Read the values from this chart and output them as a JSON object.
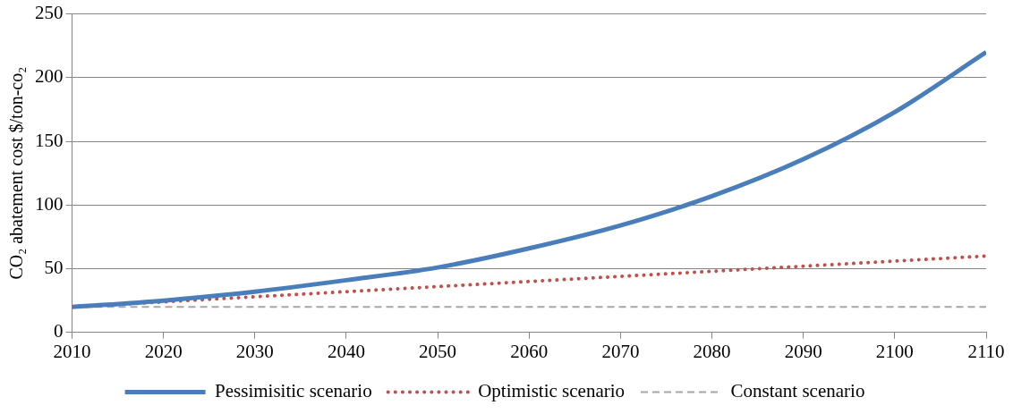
{
  "chart_data": {
    "type": "line",
    "ylabel": "CO₂ abatement cost $/ton-co₂",
    "x": [
      2010,
      2020,
      2030,
      2040,
      2050,
      2060,
      2070,
      2080,
      2090,
      2100,
      2110
    ],
    "xlim": [
      2010,
      2110
    ],
    "xticks": [
      2010,
      2020,
      2030,
      2040,
      2050,
      2060,
      2070,
      2080,
      2090,
      2100,
      2110
    ],
    "ylim": [
      0,
      250
    ],
    "yticks": [
      0,
      50,
      100,
      150,
      200,
      250
    ],
    "grid": "y",
    "legend": "bottom",
    "marker": "none",
    "series": [
      {
        "name": "Pessimisitic scenario",
        "color": "#4a7ebb",
        "line_style": "solid",
        "values": [
          20,
          25,
          32,
          41,
          51,
          66,
          84,
          107,
          136,
          173,
          220
        ]
      },
      {
        "name": "Optimistic scenario",
        "color": "#c0504d",
        "line_style": "dotted",
        "values": [
          20,
          24,
          28,
          32,
          36,
          40,
          44,
          48,
          52,
          56,
          60
        ]
      },
      {
        "name": "Constant scenario",
        "color": "#a6a6a6",
        "line_style": "dashed",
        "values": [
          20,
          20,
          20,
          20,
          20,
          20,
          20,
          20,
          20,
          20,
          20
        ]
      }
    ]
  }
}
